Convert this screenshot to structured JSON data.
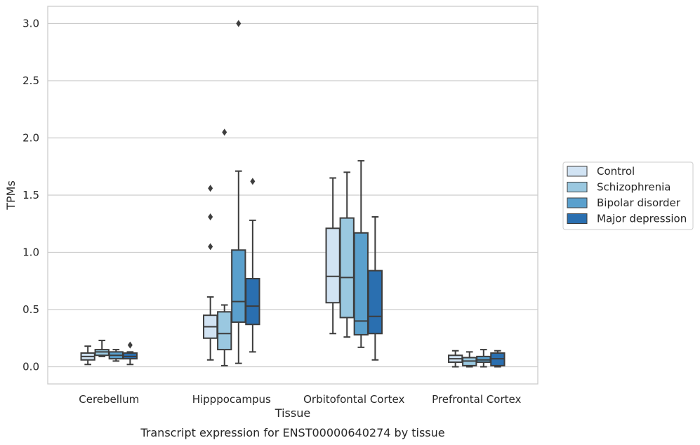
{
  "caption": "Transcript expression for ENST00000640274 by tissue",
  "chart_data": {
    "type": "box",
    "xlabel": "Tissue",
    "ylabel": "TPMs",
    "ylim": [
      -0.15,
      3.15
    ],
    "yticks": [
      "0.0",
      "0.5",
      "1.0",
      "1.5",
      "2.0",
      "2.5",
      "3.0"
    ],
    "grid": "horizontal",
    "legend_position": "right",
    "categories": [
      "Cerebellum",
      "Hipppocampus",
      "Orbitofontal Cortex",
      "Prefrontal Cortex"
    ],
    "series": [
      {
        "name": "Control",
        "color": "#d1e3f3",
        "boxes": [
          {
            "whisker_low": 0.02,
            "q1": 0.06,
            "median": 0.09,
            "q3": 0.12,
            "whisker_high": 0.18,
            "outliers": []
          },
          {
            "whisker_low": 0.06,
            "q1": 0.25,
            "median": 0.35,
            "q3": 0.45,
            "whisker_high": 0.61,
            "outliers": [
              1.05,
              1.31,
              1.56
            ]
          },
          {
            "whisker_low": 0.29,
            "q1": 0.56,
            "median": 0.79,
            "q3": 1.21,
            "whisker_high": 1.65,
            "outliers": []
          },
          {
            "whisker_low": 0.0,
            "q1": 0.04,
            "median": 0.07,
            "q3": 0.1,
            "whisker_high": 0.14,
            "outliers": []
          }
        ]
      },
      {
        "name": "Schizophrenia",
        "color": "#9ac8e0",
        "boxes": [
          {
            "whisker_low": 0.09,
            "q1": 0.1,
            "median": 0.13,
            "q3": 0.15,
            "whisker_high": 0.23,
            "outliers": []
          },
          {
            "whisker_low": 0.01,
            "q1": 0.15,
            "median": 0.29,
            "q3": 0.48,
            "whisker_high": 0.54,
            "outliers": [
              2.05
            ]
          },
          {
            "whisker_low": 0.26,
            "q1": 0.43,
            "median": 0.78,
            "q3": 1.3,
            "whisker_high": 1.7,
            "outliers": []
          },
          {
            "whisker_low": 0.0,
            "q1": 0.01,
            "median": 0.05,
            "q3": 0.08,
            "whisker_high": 0.13,
            "outliers": []
          }
        ]
      },
      {
        "name": "Bipolar disorder",
        "color": "#5aa0cd",
        "boxes": [
          {
            "whisker_low": 0.05,
            "q1": 0.07,
            "median": 0.1,
            "q3": 0.13,
            "whisker_high": 0.15,
            "outliers": []
          },
          {
            "whisker_low": 0.03,
            "q1": 0.39,
            "median": 0.57,
            "q3": 1.02,
            "whisker_high": 1.71,
            "outliers": [
              3.0
            ]
          },
          {
            "whisker_low": 0.17,
            "q1": 0.28,
            "median": 0.4,
            "q3": 1.17,
            "whisker_high": 1.8,
            "outliers": []
          },
          {
            "whisker_low": 0.0,
            "q1": 0.04,
            "median": 0.06,
            "q3": 0.09,
            "whisker_high": 0.15,
            "outliers": []
          }
        ]
      },
      {
        "name": "Major depression",
        "color": "#2a6fb0",
        "boxes": [
          {
            "whisker_low": 0.02,
            "q1": 0.07,
            "median": 0.09,
            "q3": 0.12,
            "whisker_high": 0.13,
            "outliers": [
              0.19
            ]
          },
          {
            "whisker_low": 0.13,
            "q1": 0.37,
            "median": 0.53,
            "q3": 0.77,
            "whisker_high": 1.28,
            "outliers": [
              1.62
            ]
          },
          {
            "whisker_low": 0.06,
            "q1": 0.29,
            "median": 0.44,
            "q3": 0.84,
            "whisker_high": 1.31,
            "outliers": []
          },
          {
            "whisker_low": 0.0,
            "q1": 0.01,
            "median": 0.07,
            "q3": 0.12,
            "whisker_high": 0.14,
            "outliers": []
          }
        ]
      }
    ]
  }
}
